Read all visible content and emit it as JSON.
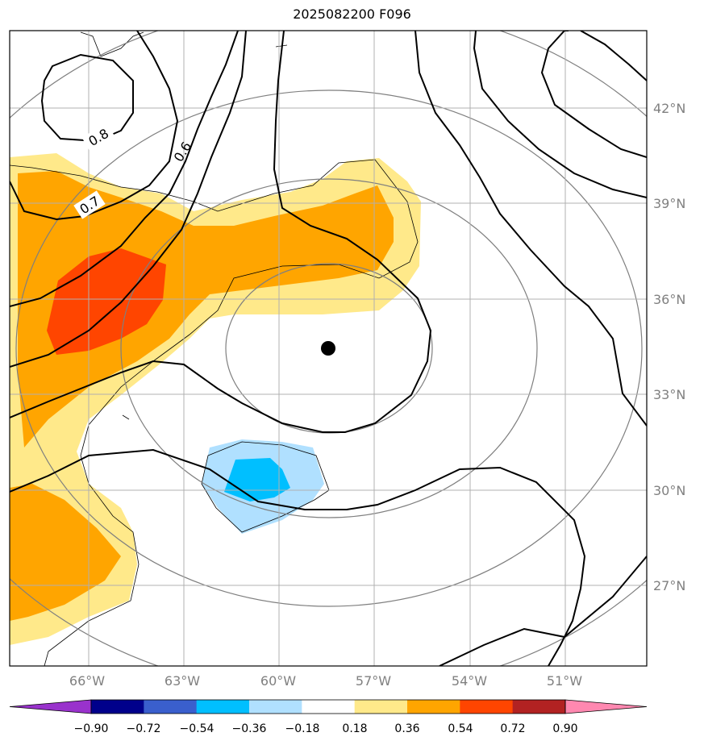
{
  "title": "2025082200 F096",
  "map": {
    "lon_labels": [
      "66°W",
      "63°W",
      "60°W",
      "57°W",
      "54°W",
      "51°W"
    ],
    "lat_labels": [
      "42°N",
      "39°N",
      "36°N",
      "33°N",
      "30°N",
      "27°N"
    ],
    "contour_labels": [
      "0.8",
      "0.7",
      "0.6"
    ],
    "center_marker": "storm-center"
  },
  "colorbar": {
    "ticks": [
      "−0.90",
      "−0.72",
      "−0.54",
      "−0.36",
      "−0.18",
      "0.18",
      "0.36",
      "0.54",
      "0.72",
      "0.90"
    ],
    "colors": [
      "#9932cc",
      "#00008b",
      "#3a5fcd",
      "#00bfff",
      "#b0e0ff",
      "#ffffff",
      "#ffe98a",
      "#ffa500",
      "#ff4500",
      "#b22222",
      "#ff88b0"
    ]
  }
}
